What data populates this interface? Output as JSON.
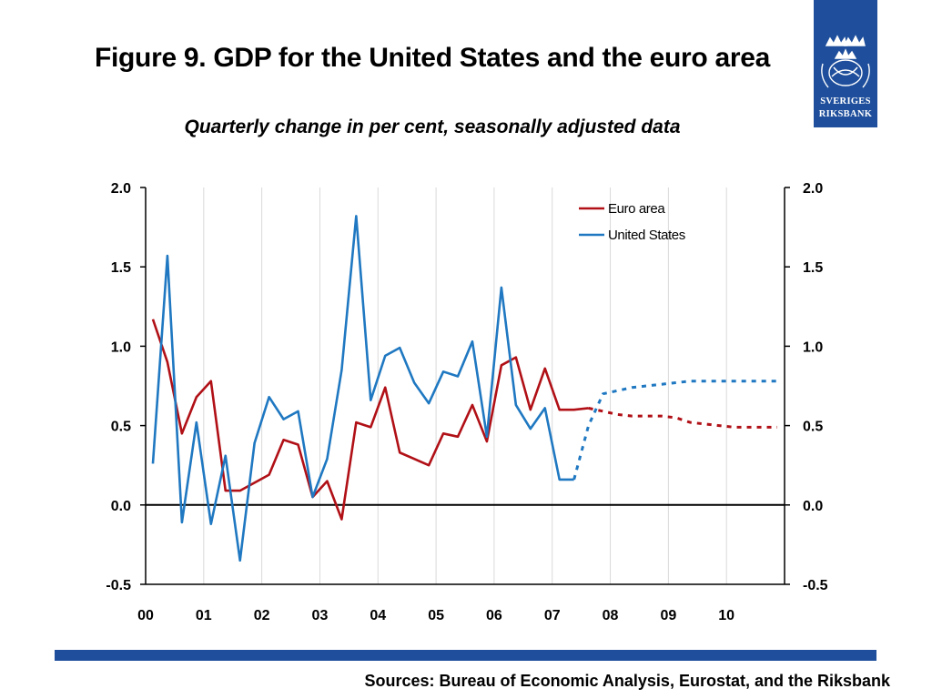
{
  "header": {
    "title": "Figure 9. GDP for the United States and the euro area",
    "subtitle": "Quarterly change in per cent, seasonally adjusted data"
  },
  "logo": {
    "line1": "SVERIGES",
    "line2": "RIKSBANK",
    "icon": "crown-seal-icon"
  },
  "footer": {
    "sources": "Sources: Bureau of Economic Analysis, Eurostat, and the Riksbank"
  },
  "colors": {
    "euro": "#b01016",
    "us": "#1f78c1",
    "brand": "#1f4f9c"
  },
  "chart_data": {
    "type": "line",
    "title": "",
    "xlabel": "",
    "ylabel": "",
    "ylim": [
      -0.5,
      2.0
    ],
    "yticks": [
      "2.0",
      "1.5",
      "1.0",
      "0.5",
      "0.0",
      "-0.5"
    ],
    "yticks_right": [
      "2.0",
      "1.5",
      "1.0",
      "0.5",
      "0.0",
      "-0.5"
    ],
    "xticks": [
      "00",
      "01",
      "02",
      "03",
      "04",
      "05",
      "06",
      "07",
      "08",
      "09",
      "10"
    ],
    "grid": "vertical",
    "legend": "top-right",
    "series": [
      {
        "name": "Euro area",
        "color": "#b01016",
        "x": [
          "00Q1",
          "00Q2",
          "00Q3",
          "00Q4",
          "01Q1",
          "01Q2",
          "01Q3",
          "01Q4",
          "02Q1",
          "02Q2",
          "02Q3",
          "02Q4",
          "03Q1",
          "03Q2",
          "03Q3",
          "03Q4",
          "04Q1",
          "04Q2",
          "04Q3",
          "04Q4",
          "05Q1",
          "05Q2",
          "05Q3",
          "05Q4",
          "06Q1",
          "06Q2",
          "06Q3",
          "06Q4",
          "07Q1",
          "07Q2",
          "07Q3"
        ],
        "values": [
          1.17,
          0.9,
          0.45,
          0.68,
          0.78,
          0.09,
          0.09,
          0.14,
          0.19,
          0.41,
          0.38,
          0.05,
          0.15,
          -0.09,
          0.52,
          0.49,
          0.74,
          0.33,
          0.29,
          0.25,
          0.45,
          0.43,
          0.63,
          0.4,
          0.88,
          0.93,
          0.6,
          0.86,
          0.6,
          0.6,
          0.61
        ]
      },
      {
        "name": "Euro area forecast",
        "color": "#b01016",
        "x": [
          "07Q3",
          "07Q4",
          "08Q1",
          "08Q2",
          "08Q3",
          "08Q4",
          "09Q1",
          "09Q2",
          "09Q3",
          "09Q4",
          "10Q1",
          "10Q2",
          "10Q3",
          "10Q4"
        ],
        "values": [
          0.61,
          0.59,
          0.57,
          0.56,
          0.56,
          0.56,
          0.55,
          0.52,
          0.51,
          0.5,
          0.49,
          0.49,
          0.49,
          0.49
        ]
      },
      {
        "name": "United States",
        "color": "#1f78c1",
        "x": [
          "00Q1",
          "00Q2",
          "00Q3",
          "00Q4",
          "01Q1",
          "01Q2",
          "01Q3",
          "01Q4",
          "02Q1",
          "02Q2",
          "02Q3",
          "02Q4",
          "03Q1",
          "03Q2",
          "03Q3",
          "03Q4",
          "04Q1",
          "04Q2",
          "04Q3",
          "04Q4",
          "05Q1",
          "05Q2",
          "05Q3",
          "05Q4",
          "06Q1",
          "06Q2",
          "06Q3",
          "06Q4",
          "07Q1",
          "07Q2"
        ],
        "values": [
          0.26,
          1.57,
          -0.11,
          0.52,
          -0.12,
          0.31,
          -0.35,
          0.39,
          0.68,
          0.54,
          0.59,
          0.05,
          0.29,
          0.85,
          1.82,
          0.66,
          0.94,
          0.99,
          0.77,
          0.64,
          0.84,
          0.81,
          1.03,
          0.43,
          1.37,
          0.63,
          0.48,
          0.61,
          0.16,
          0.16
        ]
      },
      {
        "name": "United States forecast",
        "color": "#1f78c1",
        "x": [
          "07Q2",
          "07Q3",
          "07Q4",
          "08Q1",
          "08Q2",
          "08Q3",
          "08Q4",
          "09Q1",
          "09Q2",
          "09Q3",
          "09Q4",
          "10Q1",
          "10Q2",
          "10Q3",
          "10Q4"
        ],
        "values": [
          0.16,
          0.5,
          0.7,
          0.72,
          0.74,
          0.75,
          0.76,
          0.77,
          0.78,
          0.78,
          0.78,
          0.78,
          0.78,
          0.78,
          0.78
        ]
      }
    ]
  }
}
